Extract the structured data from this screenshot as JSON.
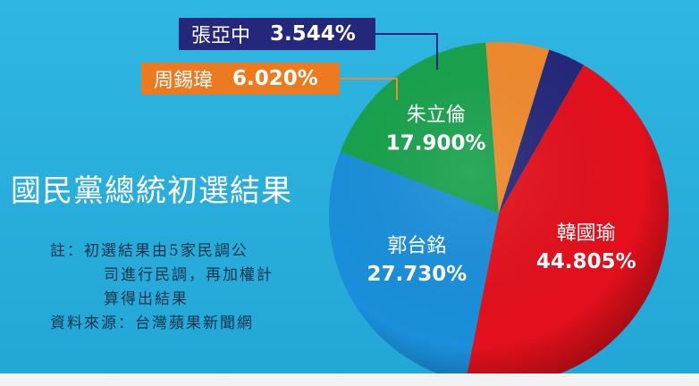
{
  "title": "國民黨總統初選結果",
  "note": {
    "lines": [
      "註：初選結果由5家民調公",
      "司進行民調，再加權計",
      "算得出結果"
    ],
    "source": "資料來源：台灣蘋果新聞網"
  },
  "colors": {
    "background": "#2aaedb",
    "han": "#e3101c",
    "gou": "#1a8fdb",
    "chu": "#17a24c",
    "chou": "#f08a2c",
    "chang": "#25287a"
  },
  "chart_data": {
    "type": "pie",
    "title": "國民黨總統初選結果",
    "slices": [
      {
        "name": "韓國瑜",
        "value": 44.805,
        "label": "44.805%",
        "color": "#e3101c"
      },
      {
        "name": "郭台銘",
        "value": 27.73,
        "label": "27.730%",
        "color": "#1a8fdb"
      },
      {
        "name": "朱立倫",
        "value": 17.9,
        "label": "17.900%",
        "color": "#17a24c"
      },
      {
        "name": "周錫瑋",
        "value": 6.02,
        "label": "6.020%",
        "color": "#f08a2c"
      },
      {
        "name": "張亞中",
        "value": 3.544,
        "label": "3.544%",
        "color": "#25287a"
      }
    ]
  }
}
